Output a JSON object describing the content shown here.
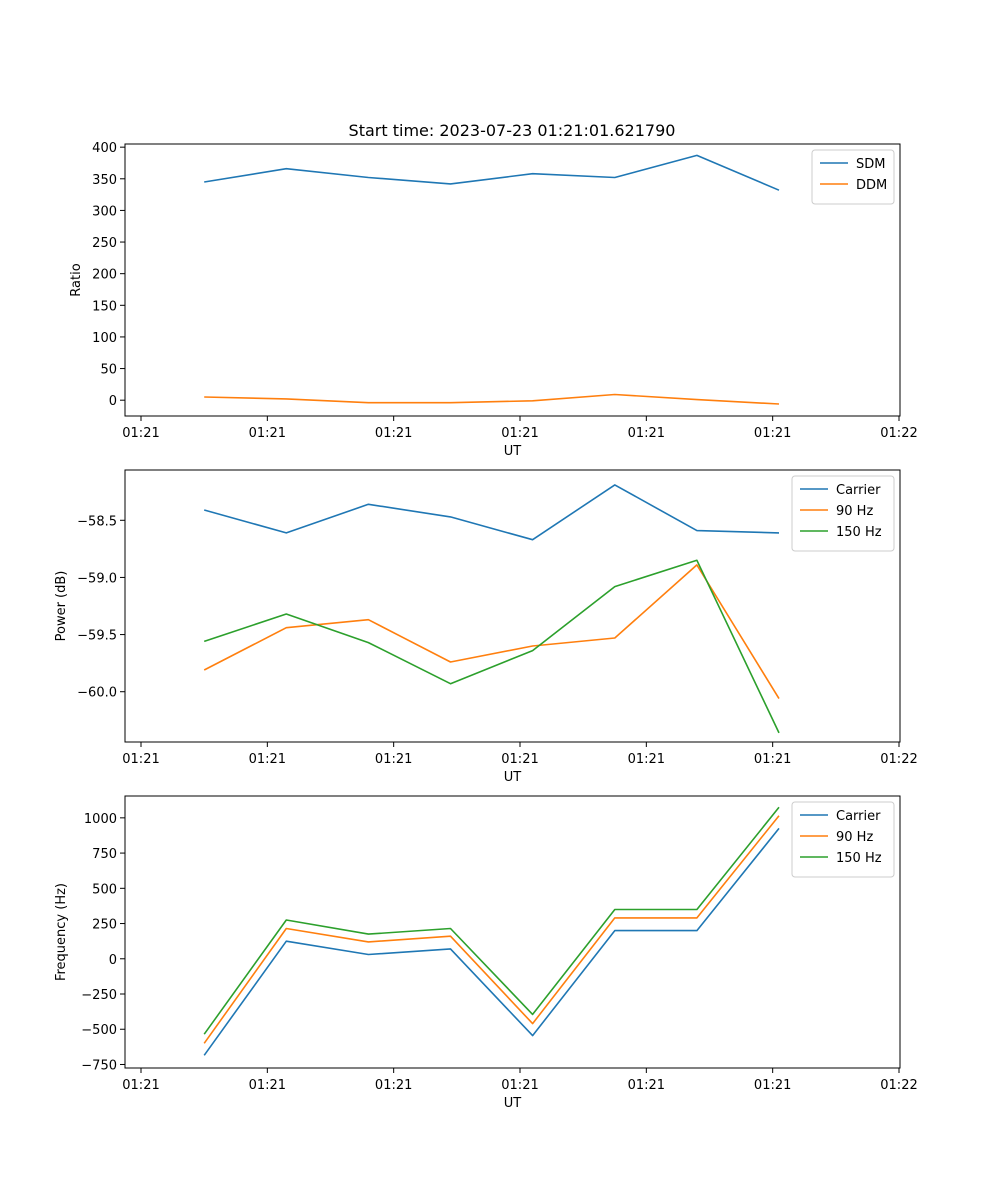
{
  "figure_title": "Start time: 2023-07-23 01:21:01.621790",
  "colors": {
    "blue": "#1f77b4",
    "orange": "#ff7f0e",
    "green": "#2ca02c"
  },
  "chart_data": [
    {
      "type": "line",
      "title": "Start time: 2023-07-23 01:21:01.621790",
      "xlabel": "UT",
      "ylabel": "Ratio",
      "x_index": [
        0.5,
        1.15,
        1.8,
        2.45,
        3.1,
        3.75,
        4.4,
        5.05
      ],
      "xlim": [
        0,
        6
      ],
      "x_ticks": [
        0,
        1,
        2,
        3,
        4,
        5,
        6
      ],
      "x_tick_labels": [
        "01:21",
        "01:21",
        "01:21",
        "01:21",
        "01:21",
        "01:21",
        "01:22"
      ],
      "ylim": [
        -25,
        405
      ],
      "y_ticks": [
        0,
        50,
        100,
        150,
        200,
        250,
        300,
        350,
        400
      ],
      "y_tick_labels": [
        "0",
        "50",
        "100",
        "150",
        "200",
        "250",
        "300",
        "350",
        "400"
      ],
      "legend_position": "top-right",
      "series": [
        {
          "name": "SDM",
          "color": "#1f77b4",
          "values": [
            345,
            366,
            352,
            342,
            358,
            352,
            387,
            332
          ]
        },
        {
          "name": "DDM",
          "color": "#ff7f0e",
          "values": [
            5,
            2,
            -4,
            -4,
            -1,
            9,
            1,
            -6
          ]
        }
      ]
    },
    {
      "type": "line",
      "title": "",
      "xlabel": "UT",
      "ylabel": "Power (dB)",
      "x_index": [
        0.5,
        1.15,
        1.8,
        2.45,
        3.1,
        3.75,
        4.4,
        5.05
      ],
      "xlim": [
        0,
        6
      ],
      "x_ticks": [
        0,
        1,
        2,
        3,
        4,
        5,
        6
      ],
      "x_tick_labels": [
        "01:21",
        "01:21",
        "01:21",
        "01:21",
        "01:21",
        "01:21",
        "01:22"
      ],
      "ylim": [
        -60.44,
        -58.06
      ],
      "y_ticks": [
        -58.5,
        -59.0,
        -59.5,
        -60.0
      ],
      "y_tick_labels": [
        "−58.5",
        "−59.0",
        "−59.5",
        "−60.0"
      ],
      "legend_position": "top-right",
      "series": [
        {
          "name": "Carrier",
          "color": "#1f77b4",
          "values": [
            -58.41,
            -58.61,
            -58.36,
            -58.47,
            -58.67,
            -58.19,
            -58.59,
            -58.61
          ]
        },
        {
          "name": "90 Hz",
          "color": "#ff7f0e",
          "values": [
            -59.81,
            -59.44,
            -59.37,
            -59.74,
            -59.6,
            -59.53,
            -58.89,
            -60.06
          ]
        },
        {
          "name": "150 Hz",
          "color": "#2ca02c",
          "values": [
            -59.56,
            -59.32,
            -59.57,
            -59.93,
            -59.64,
            -59.08,
            -58.85,
            -60.36
          ]
        }
      ]
    },
    {
      "type": "line",
      "title": "",
      "xlabel": "UT",
      "ylabel": "Frequency (Hz)",
      "x_index": [
        0.5,
        1.15,
        1.8,
        2.45,
        3.1,
        3.75,
        4.4,
        5.05
      ],
      "xlim": [
        0,
        6
      ],
      "x_ticks": [
        0,
        1,
        2,
        3,
        4,
        5,
        6
      ],
      "x_tick_labels": [
        "01:21",
        "01:21",
        "01:21",
        "01:21",
        "01:21",
        "01:21",
        "01:22"
      ],
      "ylim": [
        -775,
        1155
      ],
      "y_ticks": [
        -750,
        -500,
        -250,
        0,
        250,
        500,
        750,
        1000
      ],
      "y_tick_labels": [
        "−750",
        "−500",
        "−250",
        "0",
        "250",
        "500",
        "750",
        "1000"
      ],
      "legend_position": "top-right",
      "series": [
        {
          "name": "Carrier",
          "color": "#1f77b4",
          "values": [
            -685,
            125,
            30,
            70,
            -545,
            200,
            200,
            925
          ]
        },
        {
          "name": "90 Hz",
          "color": "#ff7f0e",
          "values": [
            -600,
            215,
            120,
            160,
            -460,
            290,
            290,
            1015
          ]
        },
        {
          "name": "150 Hz",
          "color": "#2ca02c",
          "values": [
            -535,
            275,
            175,
            215,
            -395,
            350,
            350,
            1075
          ]
        }
      ]
    }
  ]
}
